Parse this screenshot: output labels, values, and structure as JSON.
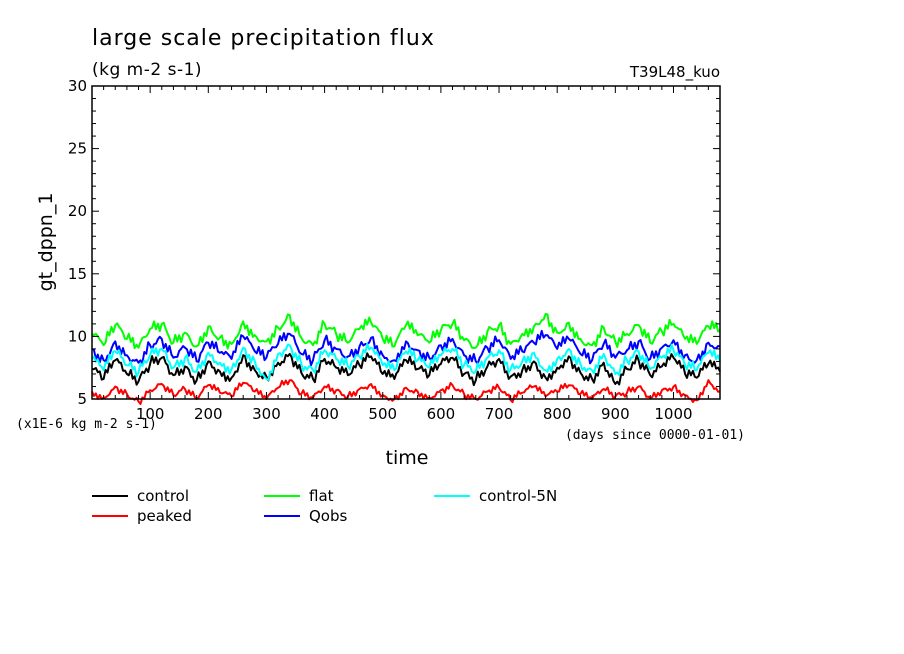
{
  "chart_data": {
    "type": "line",
    "title": "large scale precipitation flux",
    "subtitle": "(kg m-2 s-1)",
    "run_label": "T39L48_kuo",
    "ylabel": "gt_dppn_1",
    "xlabel": "time",
    "y_unit_label": "(x1E-6 kg m-2 s-1)",
    "x_unit_label": "(days since 0000-01-01)",
    "xlim": [
      0,
      1080
    ],
    "ylim": [
      5,
      30
    ],
    "x_ticks": [
      100,
      200,
      300,
      400,
      500,
      600,
      700,
      800,
      900,
      1000
    ],
    "y_ticks": [
      5,
      10,
      15,
      20,
      25,
      30
    ],
    "grid": false,
    "legend_position": "bottom-left",
    "series": [
      {
        "name": "control",
        "color": "#000000",
        "x": [
          0,
          20,
          40,
          60,
          80,
          100,
          120,
          140,
          160,
          180,
          200,
          220,
          240,
          260,
          280,
          300,
          320,
          340,
          360,
          380,
          400,
          420,
          440,
          460,
          480,
          500,
          520,
          540,
          560,
          580,
          600,
          620,
          640,
          660,
          680,
          700,
          720,
          740,
          760,
          780,
          800,
          820,
          840,
          860,
          880,
          900,
          920,
          940,
          960,
          980,
          1000,
          1020,
          1040,
          1060,
          1080
        ],
        "values": [
          7.4,
          6.6,
          8.1,
          7.0,
          6.4,
          7.8,
          8.3,
          6.9,
          7.6,
          6.5,
          8.0,
          7.2,
          6.7,
          8.5,
          7.3,
          6.8,
          7.9,
          8.6,
          7.1,
          6.6,
          8.2,
          7.5,
          6.9,
          7.7,
          8.4,
          7.0,
          6.6,
          8.1,
          7.4,
          6.9,
          7.8,
          8.3,
          7.0,
          6.5,
          7.6,
          8.2,
          6.8,
          7.3,
          8.0,
          6.7,
          7.5,
          8.4,
          7.1,
          6.6,
          7.9,
          6.2,
          7.4,
          8.1,
          6.9,
          7.6,
          8.3,
          7.0,
          6.7,
          7.8,
          7.2
        ]
      },
      {
        "name": "peaked",
        "color": "#ff0000",
        "x": [
          0,
          20,
          40,
          60,
          80,
          100,
          120,
          140,
          160,
          180,
          200,
          220,
          240,
          260,
          280,
          300,
          320,
          340,
          360,
          380,
          400,
          420,
          440,
          460,
          480,
          500,
          520,
          540,
          560,
          580,
          600,
          620,
          640,
          660,
          680,
          700,
          720,
          740,
          760,
          780,
          800,
          820,
          840,
          860,
          880,
          900,
          920,
          940,
          960,
          980,
          1000,
          1020,
          1040,
          1060,
          1080
        ],
        "values": [
          5.6,
          5.1,
          6.0,
          5.4,
          4.8,
          5.7,
          6.2,
          5.3,
          5.8,
          5.0,
          6.1,
          5.5,
          5.2,
          6.3,
          5.6,
          5.0,
          5.9,
          6.5,
          5.4,
          5.1,
          6.0,
          5.7,
          5.2,
          5.8,
          6.2,
          5.3,
          5.0,
          5.9,
          5.6,
          5.1,
          5.7,
          6.1,
          5.4,
          5.0,
          5.6,
          5.9,
          4.9,
          5.5,
          6.0,
          5.2,
          5.6,
          6.1,
          5.4,
          5.0,
          5.8,
          5.2,
          5.5,
          6.0,
          5.1,
          5.7,
          6.0,
          5.3,
          4.9,
          6.5,
          5.6
        ]
      },
      {
        "name": "flat",
        "color": "#00ff00",
        "x": [
          0,
          20,
          40,
          60,
          80,
          100,
          120,
          140,
          160,
          180,
          200,
          220,
          240,
          260,
          280,
          300,
          320,
          340,
          360,
          380,
          400,
          420,
          440,
          460,
          480,
          500,
          520,
          540,
          560,
          580,
          600,
          620,
          640,
          660,
          680,
          700,
          720,
          740,
          760,
          780,
          800,
          820,
          840,
          860,
          880,
          900,
          920,
          940,
          960,
          980,
          1000,
          1020,
          1040,
          1060,
          1080
        ],
        "values": [
          10.2,
          9.3,
          10.9,
          9.8,
          9.1,
          10.6,
          11.0,
          9.5,
          10.3,
          9.2,
          10.8,
          9.9,
          9.4,
          11.2,
          10.1,
          9.6,
          10.7,
          11.7,
          9.9,
          9.3,
          11.0,
          10.2,
          9.5,
          10.6,
          11.1,
          9.8,
          9.2,
          10.9,
          10.1,
          9.5,
          10.5,
          11.0,
          9.7,
          9.1,
          10.4,
          10.9,
          9.4,
          10.2,
          10.8,
          11.8,
          10.3,
          11.1,
          9.8,
          9.3,
          10.7,
          9.6,
          10.2,
          10.9,
          9.5,
          10.4,
          11.0,
          9.8,
          9.4,
          10.8,
          10.5
        ]
      },
      {
        "name": "Qobs",
        "color": "#0000ff",
        "x": [
          0,
          20,
          40,
          60,
          80,
          100,
          120,
          140,
          160,
          180,
          200,
          220,
          240,
          260,
          280,
          300,
          320,
          340,
          360,
          380,
          400,
          420,
          440,
          460,
          480,
          500,
          520,
          540,
          560,
          580,
          600,
          620,
          640,
          660,
          680,
          700,
          720,
          740,
          760,
          780,
          800,
          820,
          840,
          860,
          880,
          900,
          920,
          940,
          960,
          980,
          1000,
          1020,
          1040,
          1060,
          1080
        ],
        "values": [
          9.0,
          8.1,
          9.6,
          8.5,
          7.9,
          9.3,
          9.8,
          8.3,
          9.1,
          8.0,
          9.5,
          8.7,
          8.2,
          10.0,
          8.8,
          8.3,
          9.4,
          10.2,
          8.6,
          8.1,
          9.7,
          9.0,
          8.4,
          9.2,
          9.9,
          8.5,
          8.1,
          9.6,
          8.9,
          8.3,
          9.3,
          9.8,
          8.5,
          8.0,
          9.1,
          9.7,
          8.2,
          8.8,
          9.5,
          10.1,
          9.0,
          9.8,
          8.6,
          8.1,
          9.4,
          8.3,
          8.9,
          9.6,
          8.2,
          9.1,
          9.7,
          8.5,
          8.1,
          9.5,
          9.2
        ]
      },
      {
        "name": "control-5N",
        "color": "#00ffff",
        "x": [
          0,
          20,
          40,
          60,
          80,
          100,
          120,
          140,
          160,
          180,
          200,
          220,
          240,
          260,
          280,
          300,
          320,
          340,
          360,
          380,
          400,
          420,
          440,
          460,
          480,
          500,
          520,
          540,
          560,
          580,
          600,
          620,
          640,
          660,
          680,
          700,
          720,
          740,
          760,
          780,
          800,
          820,
          840,
          860,
          880,
          900,
          920,
          940,
          960,
          980,
          1000,
          1020,
          1040,
          1060,
          1080
        ],
        "values": [
          8.2,
          7.3,
          8.8,
          7.7,
          7.1,
          8.5,
          9.0,
          7.5,
          8.3,
          7.2,
          8.7,
          7.9,
          7.4,
          9.1,
          8.0,
          6.6,
          8.6,
          9.3,
          7.8,
          7.3,
          8.9,
          8.2,
          7.6,
          8.4,
          9.1,
          7.7,
          7.3,
          8.8,
          8.1,
          7.5,
          8.5,
          9.0,
          7.7,
          7.2,
          8.3,
          8.9,
          7.4,
          8.0,
          8.7,
          7.3,
          8.2,
          9.0,
          7.8,
          7.3,
          8.6,
          7.0,
          8.1,
          8.8,
          7.4,
          8.3,
          8.9,
          7.7,
          7.3,
          8.7,
          8.0
        ]
      }
    ]
  }
}
